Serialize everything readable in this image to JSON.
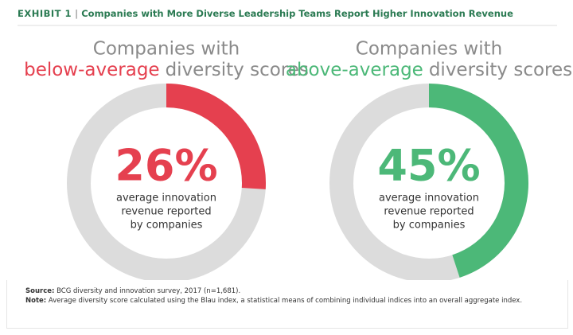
{
  "header": {
    "exhibit": "EXHIBIT 1",
    "title": "Companies with More Diverse Leadership Teams Report Higher Innovation Revenue"
  },
  "chart_data": [
    {
      "type": "donut",
      "title": "Companies with",
      "subtitle_highlight": "below-average",
      "subtitle_rest": "diversity scores",
      "values": [
        26
      ],
      "value_labels": [
        "26%"
      ],
      "color": "#e5404f",
      "description": [
        "average innovation",
        "revenue reported",
        "by companies"
      ]
    },
    {
      "type": "donut",
      "title": "Companies with",
      "subtitle_highlight": "above-average",
      "subtitle_rest": "diversity scores",
      "values": [
        45
      ],
      "value_labels": [
        "45%"
      ],
      "color": "#4cb878",
      "description": [
        "average innovation",
        "revenue reported",
        "by companies"
      ]
    }
  ],
  "footer": {
    "source_label": "Source:",
    "source_text": "BCG diversity and innovation survey, 2017 (n=1,681).",
    "note_label": "Note:",
    "note_text": "Average diversity score calculated using the Blau index, a statistical means of combining individual indices into an overall aggregate index."
  }
}
